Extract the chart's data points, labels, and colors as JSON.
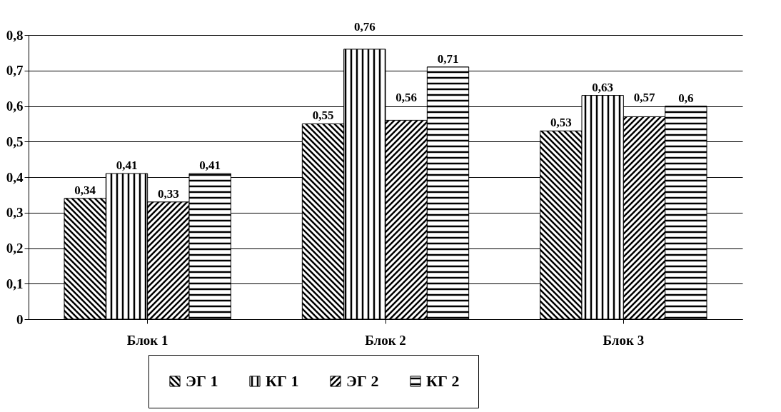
{
  "chart_data": {
    "type": "bar",
    "categories": [
      "Блок 1",
      "Блок 2",
      "Блок 3"
    ],
    "series": [
      {
        "name": "ЭГ 1",
        "color": "#000000",
        "values": [
          0.34,
          0.55,
          0.53
        ],
        "value_labels": [
          "0,34",
          "0,55",
          "0,53"
        ]
      },
      {
        "name": "КГ 1",
        "color": "#000000",
        "values": [
          0.41,
          0.76,
          0.63
        ],
        "value_labels": [
          "0,41",
          "0,76",
          "0,63"
        ]
      },
      {
        "name": "ЭГ 2",
        "color": "#000000",
        "values": [
          0.33,
          0.56,
          0.57
        ],
        "value_labels": [
          "0,33",
          "0,56",
          "0,57"
        ]
      },
      {
        "name": "КГ 2",
        "color": "#000000",
        "values": [
          0.41,
          0.71,
          0.6
        ],
        "value_labels": [
          "0,41",
          "0,71",
          "0,6"
        ]
      }
    ],
    "ylim": [
      0,
      0.8
    ],
    "yticks": [
      0,
      {
        "value": 0.1,
        "label": "0,1"
      },
      {
        "value": 0.2,
        "label": "0,2"
      },
      {
        "value": 0.3,
        "label": "0,3"
      },
      {
        "value": 0.4,
        "label": "0,4"
      },
      {
        "value": 0.5,
        "label": "0,5"
      },
      {
        "value": 0.6,
        "label": "0,6"
      },
      {
        "value": 0.7,
        "label": "0,7"
      },
      {
        "value": 0.8,
        "label": "0,8"
      }
    ],
    "grid": "y",
    "legend": "bottom"
  }
}
